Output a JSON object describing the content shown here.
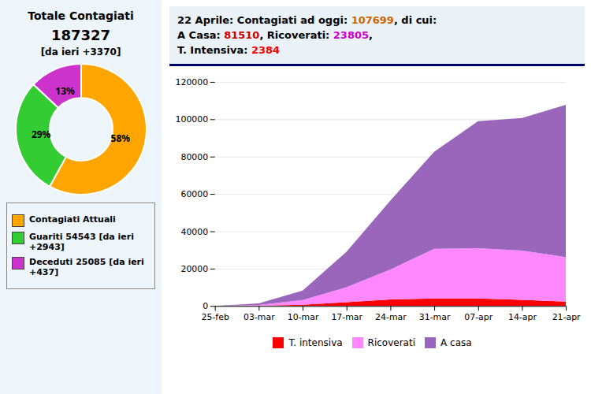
{
  "chart_data": [
    {
      "type": "pie",
      "title": "Totale Contagiati",
      "annotations": [
        "187327",
        "[da ieri +3370]"
      ],
      "categories": [
        "Contagiati Attuali",
        "Guariti 54543 [da ieri +2943]",
        "Deceduti 25085 [da ieri\n+437]"
      ],
      "values": [
        58,
        29,
        13
      ],
      "value_labels": [
        "58%",
        "29%",
        "13%"
      ],
      "colors": [
        "#FFA500",
        "#33CC33",
        "#CC33CC"
      ],
      "data_labels": true
    },
    {
      "type": "area",
      "stacked": true,
      "annotations": [
        [
          {
            "text": "22 Aprile: Contagiati ad oggi: ",
            "color": "#000000"
          },
          {
            "text": "107699",
            "color": "#CC6600"
          },
          {
            "text": ", di cui:",
            "color": "#000000"
          }
        ],
        [
          {
            "text": "A Casa: ",
            "color": "#000000"
          },
          {
            "text": "81510",
            "color": "#CC0000"
          },
          {
            "text": ", Ricoverati: ",
            "color": "#000000"
          },
          {
            "text": "23805",
            "color": "#CC00CC"
          },
          {
            "text": ",",
            "color": "#000000"
          }
        ],
        [
          {
            "text": "T. Intensiva: ",
            "color": "#000000"
          },
          {
            "text": "2384",
            "color": "#FF0000"
          }
        ]
      ],
      "categories": [
        "25-feb",
        "03-mar",
        "10-mar",
        "17-mar",
        "24-mar",
        "31-mar",
        "07-apr",
        "14-apr",
        "21-apr"
      ],
      "series": [
        {
          "name": "T. intensiva",
          "color": "#FF0000",
          "values": [
            0,
            150,
            700,
            2000,
            3500,
            4053,
            3981,
            3260,
            2384
          ]
        },
        {
          "name": "Ricoverati",
          "color": "#FF88FF",
          "values": [
            0,
            400,
            2500,
            8000,
            16000,
            26600,
            27000,
            26400,
            23805
          ]
        },
        {
          "name": "A casa",
          "color": "#9966BB",
          "values": [
            0,
            800,
            5000,
            19000,
            37000,
            52000,
            68000,
            71000,
            81510
          ]
        }
      ],
      "ylim": [
        0,
        120000
      ],
      "yticks": [
        0,
        20000,
        40000,
        60000,
        80000,
        100000,
        120000
      ],
      "grid": true
    }
  ]
}
